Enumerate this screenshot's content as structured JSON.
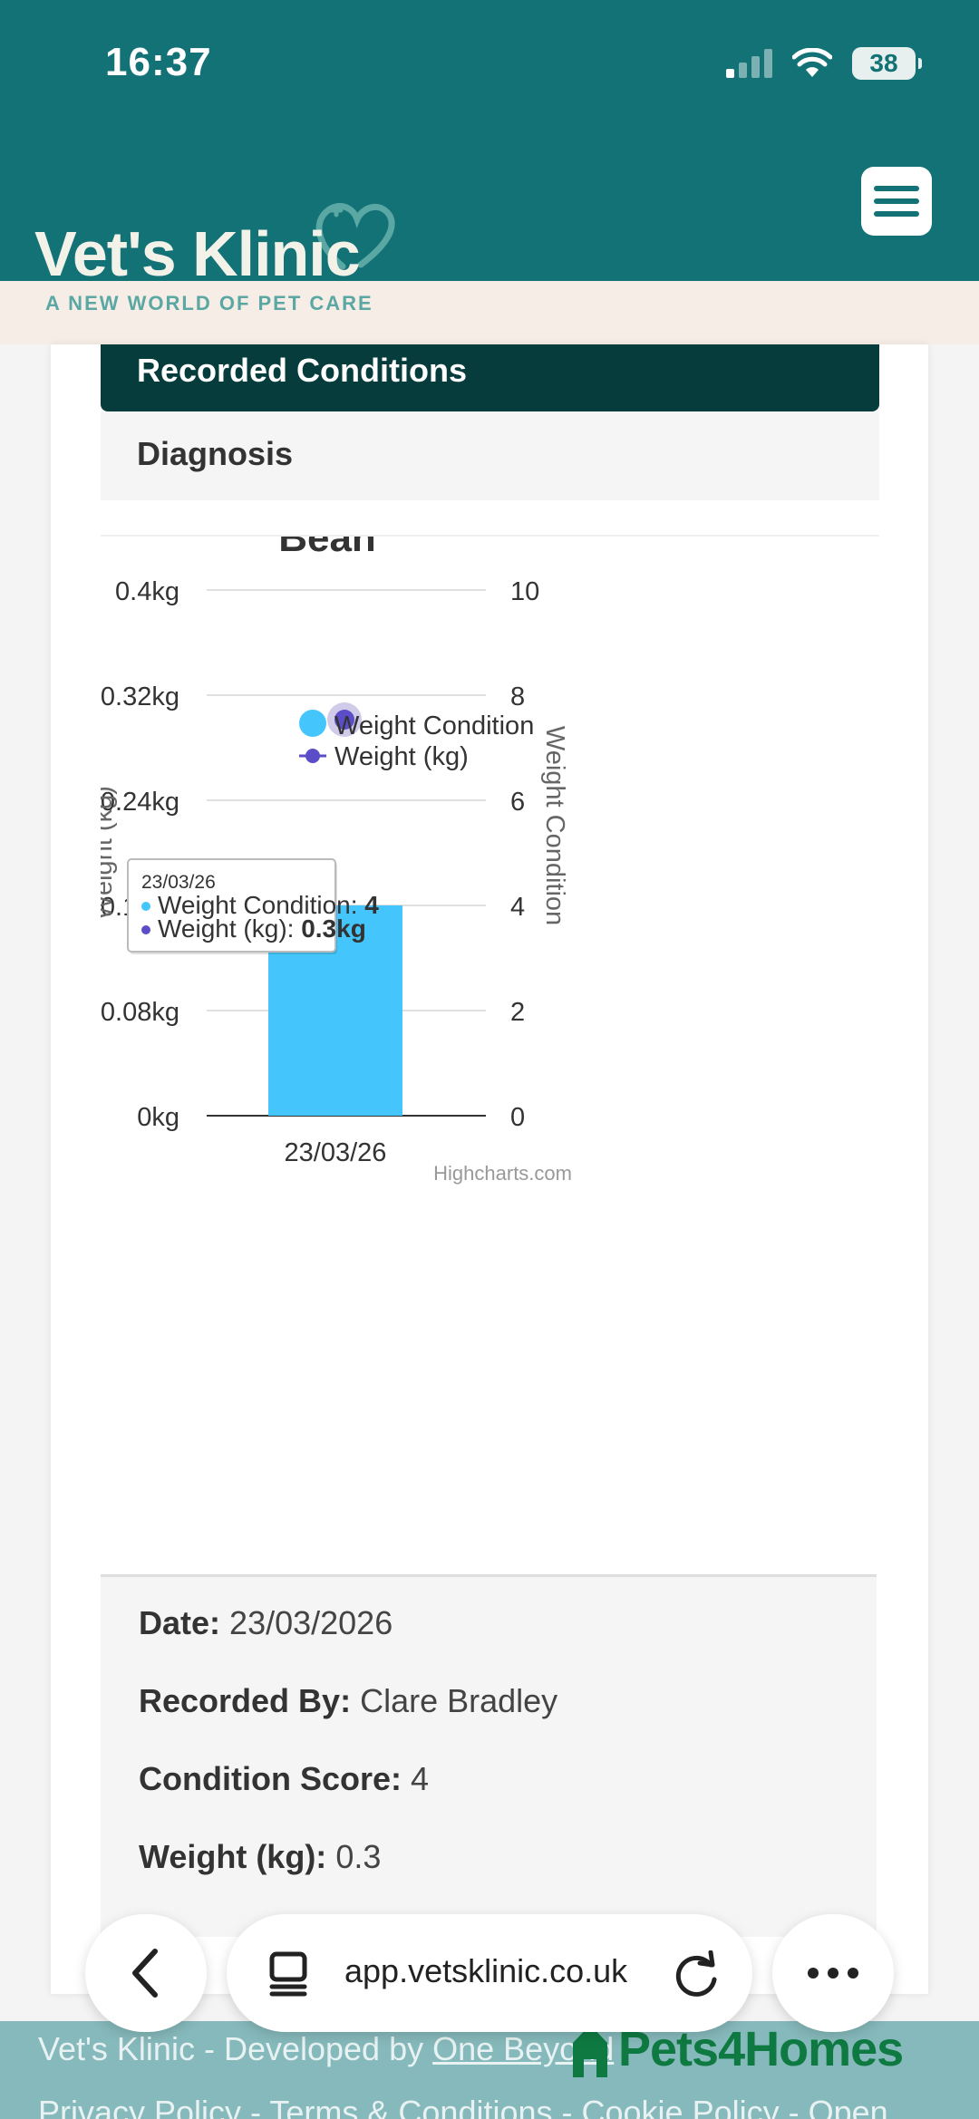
{
  "status_bar": {
    "time": "16:37",
    "battery": "38"
  },
  "brand": {
    "name": "Vet's Klinic",
    "tagline": "A NEW WORLD OF PET CARE",
    "color": "#127276"
  },
  "tabs": [
    {
      "label": "Recorded Conditions",
      "active": true
    },
    {
      "label": "Diagnosis",
      "active": false
    }
  ],
  "chart_data": {
    "type": "bar",
    "title": "Bean",
    "categories": [
      "23/03/26"
    ],
    "series": [
      {
        "name": "Weight Condition",
        "type": "bar",
        "axis": "right",
        "values": [
          4
        ],
        "color": "#44c6fc"
      },
      {
        "name": "Weight (kg)",
        "type": "line",
        "axis": "left",
        "values": [
          0.3
        ],
        "color": "#5b4dc7"
      }
    ],
    "y_left": {
      "label": "Weight (kg)",
      "range": [
        0,
        0.4
      ],
      "ticks": [
        "0kg",
        "0.08kg",
        "0.16kg",
        "0.24kg",
        "0.32kg",
        "0.4kg"
      ]
    },
    "y_right": {
      "label": "Weight Condition",
      "range": [
        0,
        10
      ],
      "ticks": [
        "0",
        "2",
        "4",
        "6",
        "8",
        "10"
      ]
    },
    "grid": true,
    "legend": "top-right",
    "credits": "Highcharts.com",
    "tooltip": {
      "date": "23/03/26",
      "rows": [
        {
          "label": "Weight Condition: ",
          "value": "4"
        },
        {
          "label": "Weight (kg): ",
          "value": "0.3kg"
        }
      ]
    }
  },
  "details": {
    "date_label": "Date:",
    "date_value": "23/03/2026",
    "recorded_label": "Recorded By:",
    "recorded_value": "Clare Bradley",
    "score_label": "Condition Score:",
    "score_value": "4",
    "weight_label": "Weight (kg):",
    "weight_value": "0.3"
  },
  "footer": {
    "credit_prefix": "Vet's Klinic - Developed by ",
    "credit_link": "One Beyond",
    "links": "Privacy Policy - Terms & Conditions - Cookie Policy - Open",
    "partner": "Pets4Homes",
    "partner_color": "#0e7a42"
  },
  "browser": {
    "url": "app.vetsklinic.co.uk"
  }
}
